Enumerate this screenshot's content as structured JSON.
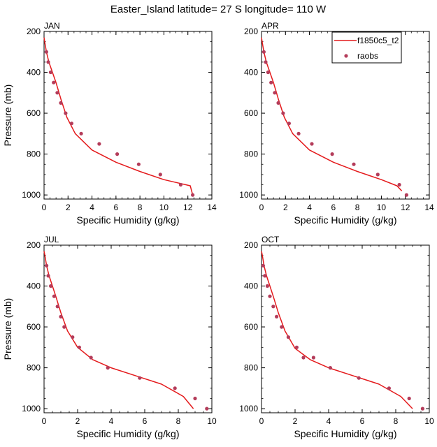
{
  "page_title": "Easter_Island  latitude= 27 S longitude= 110 W",
  "colors": {
    "model": "#e41a1c",
    "raobs": "#b43c5a"
  },
  "legend": {
    "model_label": "f1850c5_t2",
    "obs_label": "raobs",
    "placement": "top-right of APR panel"
  },
  "chart_data": [
    {
      "type": "line",
      "title": "JAN",
      "xlabel": "Specific Humidity (g/kg)",
      "ylabel": "Pressure (mb)",
      "xlim": [
        0,
        14
      ],
      "ylim": [
        1020,
        200
      ],
      "xticks": [
        0,
        2,
        4,
        6,
        8,
        10,
        12,
        14
      ],
      "yticks": [
        200,
        400,
        600,
        800,
        1000
      ],
      "series": [
        {
          "name": "f1850c5_t2",
          "style": "line",
          "x": [
            0.0,
            0.05,
            0.2,
            0.4,
            0.7,
            1.0,
            1.4,
            1.9,
            2.6,
            4.0,
            6.0,
            8.0,
            10.0,
            12.2,
            12.4
          ],
          "y": [
            230,
            250,
            300,
            350,
            400,
            450,
            530,
            620,
            700,
            780,
            840,
            885,
            925,
            955,
            1000
          ]
        },
        {
          "name": "raobs",
          "style": "points",
          "x": [
            0.2,
            0.35,
            0.55,
            0.8,
            1.1,
            1.4,
            1.8,
            2.3,
            3.1,
            4.6,
            6.1,
            7.9,
            9.7,
            11.4,
            12.4
          ],
          "y": [
            300,
            350,
            400,
            450,
            500,
            550,
            600,
            650,
            700,
            750,
            800,
            850,
            900,
            950,
            1000
          ]
        }
      ]
    },
    {
      "type": "line",
      "title": "APR",
      "xlabel": "Specific Humidity (g/kg)",
      "ylabel": "",
      "xlim": [
        0,
        14
      ],
      "ylim": [
        1020,
        200
      ],
      "xticks": [
        0,
        2,
        4,
        6,
        8,
        10,
        12,
        14
      ],
      "yticks": [
        200,
        400,
        600,
        800,
        1000
      ],
      "series": [
        {
          "name": "f1850c5_t2",
          "style": "line",
          "x": [
            0.0,
            0.05,
            0.2,
            0.4,
            0.7,
            1.0,
            1.4,
            1.9,
            2.6,
            4.0,
            6.0,
            8.0,
            10.0,
            11.3,
            11.7
          ],
          "y": [
            230,
            250,
            300,
            350,
            400,
            450,
            530,
            620,
            700,
            780,
            840,
            885,
            925,
            955,
            980
          ]
        },
        {
          "name": "raobs",
          "style": "points",
          "x": [
            0.2,
            0.35,
            0.55,
            0.8,
            1.1,
            1.4,
            1.8,
            2.3,
            3.1,
            4.2,
            5.9,
            7.7,
            9.7,
            11.5,
            12.1
          ],
          "y": [
            300,
            350,
            400,
            450,
            500,
            550,
            600,
            650,
            700,
            750,
            800,
            850,
            900,
            950,
            1000
          ]
        }
      ]
    },
    {
      "type": "line",
      "title": "JUL",
      "xlabel": "Specific Humidity (g/kg)",
      "ylabel": "Pressure (mb)",
      "xlim": [
        0,
        10
      ],
      "ylim": [
        1020,
        200
      ],
      "xticks": [
        0,
        2,
        4,
        6,
        8,
        10
      ],
      "yticks": [
        200,
        400,
        600,
        800,
        1000
      ],
      "series": [
        {
          "name": "f1850c5_t2",
          "style": "line",
          "x": [
            0.0,
            0.05,
            0.15,
            0.3,
            0.5,
            0.7,
            1.0,
            1.4,
            2.0,
            2.9,
            4.0,
            5.5,
            7.0,
            8.3,
            8.9
          ],
          "y": [
            230,
            250,
            300,
            350,
            400,
            450,
            530,
            620,
            700,
            760,
            800,
            840,
            880,
            940,
            1000
          ]
        },
        {
          "name": "raobs",
          "style": "points",
          "x": [
            0.15,
            0.25,
            0.4,
            0.6,
            0.8,
            1.0,
            1.2,
            1.7,
            2.1,
            2.8,
            3.8,
            5.7,
            7.8,
            9.0,
            9.7
          ],
          "y": [
            300,
            350,
            400,
            450,
            500,
            550,
            600,
            650,
            700,
            750,
            800,
            850,
            900,
            950,
            1000
          ]
        }
      ]
    },
    {
      "type": "line",
      "title": "OCT",
      "xlabel": "Specific Humidity (g/kg)",
      "ylabel": "",
      "xlim": [
        0,
        10
      ],
      "ylim": [
        1020,
        200
      ],
      "xticks": [
        0,
        2,
        4,
        6,
        8,
        10
      ],
      "yticks": [
        200,
        400,
        600,
        800,
        1000
      ],
      "series": [
        {
          "name": "f1850c5_t2",
          "style": "line",
          "x": [
            0.0,
            0.05,
            0.15,
            0.3,
            0.5,
            0.7,
            1.0,
            1.4,
            2.0,
            2.9,
            4.0,
            5.5,
            7.0,
            8.3,
            9.0
          ],
          "y": [
            230,
            250,
            300,
            350,
            400,
            450,
            530,
            620,
            705,
            760,
            800,
            840,
            880,
            940,
            1000
          ]
        },
        {
          "name": "raobs",
          "style": "points",
          "x": [
            0.1,
            0.2,
            0.35,
            0.5,
            0.7,
            0.9,
            1.2,
            1.6,
            2.1,
            2.5,
            3.1,
            4.1,
            5.8,
            7.6,
            8.8,
            9.6
          ],
          "y": [
            300,
            350,
            400,
            450,
            500,
            550,
            600,
            650,
            700,
            750,
            750,
            800,
            850,
            900,
            950,
            1000
          ]
        }
      ]
    }
  ]
}
